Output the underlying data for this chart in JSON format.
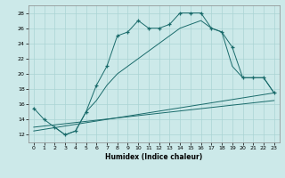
{
  "title": "",
  "xlabel": "Humidex (Indice chaleur)",
  "ylabel": "",
  "xlim": [
    -0.5,
    23.5
  ],
  "ylim": [
    11,
    29
  ],
  "yticks": [
    12,
    14,
    16,
    18,
    20,
    22,
    24,
    26,
    28
  ],
  "xticks": [
    0,
    1,
    2,
    3,
    4,
    5,
    6,
    7,
    8,
    9,
    10,
    11,
    12,
    13,
    14,
    15,
    16,
    17,
    18,
    19,
    20,
    21,
    22,
    23
  ],
  "bg_color": "#cce9e9",
  "grid_color": "#aad4d4",
  "line_color": "#1a6b6b",
  "line1_x": [
    0,
    1,
    2,
    3,
    4,
    5,
    6,
    7,
    8,
    9,
    10,
    11,
    12,
    13,
    14,
    15,
    16,
    17,
    18,
    19,
    20,
    21,
    22,
    23
  ],
  "line1_y": [
    15.5,
    14,
    13,
    12,
    12.5,
    15,
    18.5,
    21,
    25,
    25.5,
    27,
    26,
    26,
    26.5,
    28,
    28,
    28,
    26,
    25.5,
    23.5,
    19.5,
    19.5,
    19.5,
    17.5
  ],
  "line2_x": [
    2,
    3,
    4,
    5,
    6,
    7,
    8,
    9,
    10,
    11,
    12,
    13,
    14,
    15,
    16,
    17,
    18,
    19,
    20,
    21,
    22,
    23
  ],
  "line2_y": [
    13,
    12,
    12.5,
    15,
    16.5,
    18.5,
    20,
    21,
    22,
    23,
    24,
    25,
    26,
    26.5,
    27,
    26,
    25.5,
    21,
    19.5,
    19.5,
    19.5,
    17.5
  ],
  "line3_x": [
    0,
    23
  ],
  "line3_y": [
    12.5,
    17.5
  ],
  "line4_x": [
    0,
    23
  ],
  "line4_y": [
    13,
    16.5
  ]
}
